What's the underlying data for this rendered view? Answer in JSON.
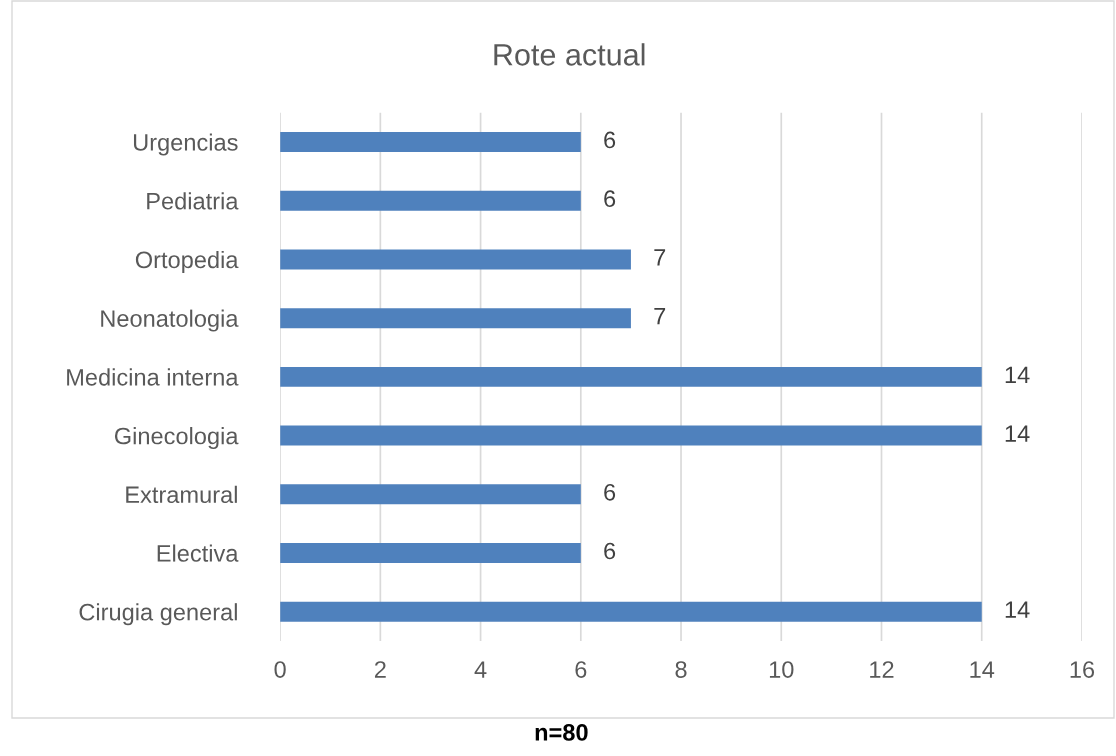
{
  "chart_data": {
    "type": "bar",
    "orientation": "horizontal",
    "title": "Rote actual",
    "categories": [
      "Urgencias",
      "Pediatria",
      "Ortopedia",
      "Neonatologia",
      "Medicina interna",
      "Ginecologia",
      "Extramural",
      "Electiva",
      "Cirugia general"
    ],
    "values": [
      6,
      6,
      7,
      7,
      14,
      14,
      6,
      6,
      14
    ],
    "color": "#4f81bd",
    "xlim": [
      0,
      16
    ],
    "xticks": [
      0,
      2,
      4,
      6,
      8,
      10,
      12,
      14,
      16
    ],
    "grid": "x",
    "data_labels": true,
    "legend": false,
    "annotations": [
      "n=80"
    ]
  }
}
